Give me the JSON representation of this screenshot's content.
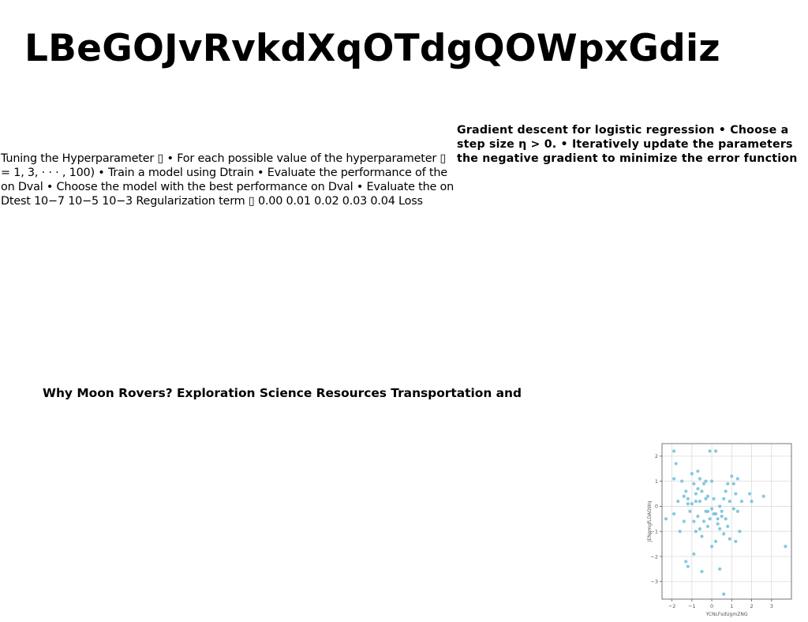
{
  "title": "LBeGOJvRvkdXqOTdgQOWpxGdiz",
  "right_block": "Gradient descent for logistic regression • Choose a step size η > 0. • Iteratively update the parameters the negative gradient to minimize the error function",
  "left_block": "Tuning the Hyperparameter ▯ • For each possible value of the hyperparameter ▯ = 1, 3, · · · , 100) • Train a model using Dtrain • Evaluate the performance of the on Dval • Choose the model with the best performance on Dval • Evaluate the on Dtest 10−7 10−5 10−3 Regularization term ▯ 0.00 0.01 0.02 0.03 0.04 Loss",
  "mid_block": "Why Moon Rovers? Exploration Science Resources Transportation and",
  "chart_data": {
    "type": "scatter",
    "xlabel": "YCNLFsdUgmZNG",
    "ylabel": "JENpmgfLDAOWq",
    "xlim": [
      -2.5,
      4.0
    ],
    "ylim": [
      -3.7,
      2.5
    ],
    "xticks": [
      "−2",
      "−1",
      "0",
      "1",
      "2",
      "3"
    ],
    "yticks": [
      "2",
      "1",
      "0",
      "−1",
      "−2",
      "−3"
    ],
    "grid": true,
    "color": "#6fc0d8",
    "points": [
      [
        -1.9,
        2.2
      ],
      [
        -1.8,
        1.7
      ],
      [
        -1.9,
        1.1
      ],
      [
        -2.3,
        -0.5
      ],
      [
        -1.9,
        -0.3
      ],
      [
        -1.7,
        0.2
      ],
      [
        -1.5,
        1.0
      ],
      [
        -1.3,
        0.6
      ],
      [
        -1.4,
        -0.6
      ],
      [
        -1.2,
        0.3
      ],
      [
        -1.0,
        1.3
      ],
      [
        -0.9,
        0.9
      ],
      [
        -0.8,
        0.5
      ],
      [
        -0.7,
        1.4
      ],
      [
        -0.6,
        1.1
      ],
      [
        -1.1,
        -0.2
      ],
      [
        -1.0,
        0.1
      ],
      [
        -0.9,
        -0.6
      ],
      [
        -0.8,
        -1.0
      ],
      [
        -0.7,
        -0.4
      ],
      [
        -0.6,
        0.2
      ],
      [
        -0.5,
        0.6
      ],
      [
        -0.4,
        0.9
      ],
      [
        -0.3,
        -0.2
      ],
      [
        -0.2,
        0.4
      ],
      [
        -0.1,
        -0.5
      ],
      [
        0.0,
        1.0
      ],
      [
        0.0,
        -0.1
      ],
      [
        0.1,
        0.3
      ],
      [
        0.2,
        -0.3
      ],
      [
        0.3,
        -0.7
      ],
      [
        0.4,
        0.0
      ],
      [
        0.5,
        -0.4
      ],
      [
        0.6,
        -1.1
      ],
      [
        0.7,
        0.6
      ],
      [
        0.8,
        0.9
      ],
      [
        0.9,
        0.2
      ],
      [
        1.0,
        1.2
      ],
      [
        1.1,
        -0.1
      ],
      [
        1.2,
        0.5
      ],
      [
        1.3,
        1.1
      ],
      [
        1.4,
        -1.0
      ],
      [
        0.9,
        -1.3
      ],
      [
        1.2,
        -1.4
      ],
      [
        0.2,
        -1.4
      ],
      [
        0.0,
        -1.6
      ],
      [
        -0.5,
        -1.2
      ],
      [
        -0.9,
        -1.9
      ],
      [
        -1.3,
        -2.2
      ],
      [
        -1.2,
        -2.4
      ],
      [
        -0.5,
        -2.6
      ],
      [
        0.4,
        -2.5
      ],
      [
        0.6,
        -3.5
      ],
      [
        -0.1,
        2.2
      ],
      [
        0.2,
        2.2
      ],
      [
        1.9,
        0.5
      ],
      [
        2.0,
        0.2
      ],
      [
        2.6,
        0.4
      ],
      [
        3.7,
        -1.6
      ],
      [
        -0.3,
        1.0
      ],
      [
        -0.4,
        -0.6
      ],
      [
        -0.2,
        -0.2
      ],
      [
        0.1,
        -0.3
      ],
      [
        0.3,
        -0.5
      ],
      [
        0.5,
        -0.2
      ],
      [
        -1.6,
        -1.0
      ],
      [
        -0.6,
        -0.9
      ],
      [
        -1.2,
        0.1
      ],
      [
        -0.8,
        0.2
      ],
      [
        0.7,
        -0.5
      ],
      [
        1.5,
        0.2
      ],
      [
        1.1,
        0.9
      ],
      [
        -0.3,
        0.3
      ],
      [
        0.8,
        -0.8
      ],
      [
        -1.4,
        0.4
      ],
      [
        -0.2,
        -0.8
      ],
      [
        0.6,
        0.3
      ],
      [
        0.4,
        -0.9
      ],
      [
        -0.7,
        0.7
      ],
      [
        1.3,
        -0.2
      ]
    ]
  }
}
